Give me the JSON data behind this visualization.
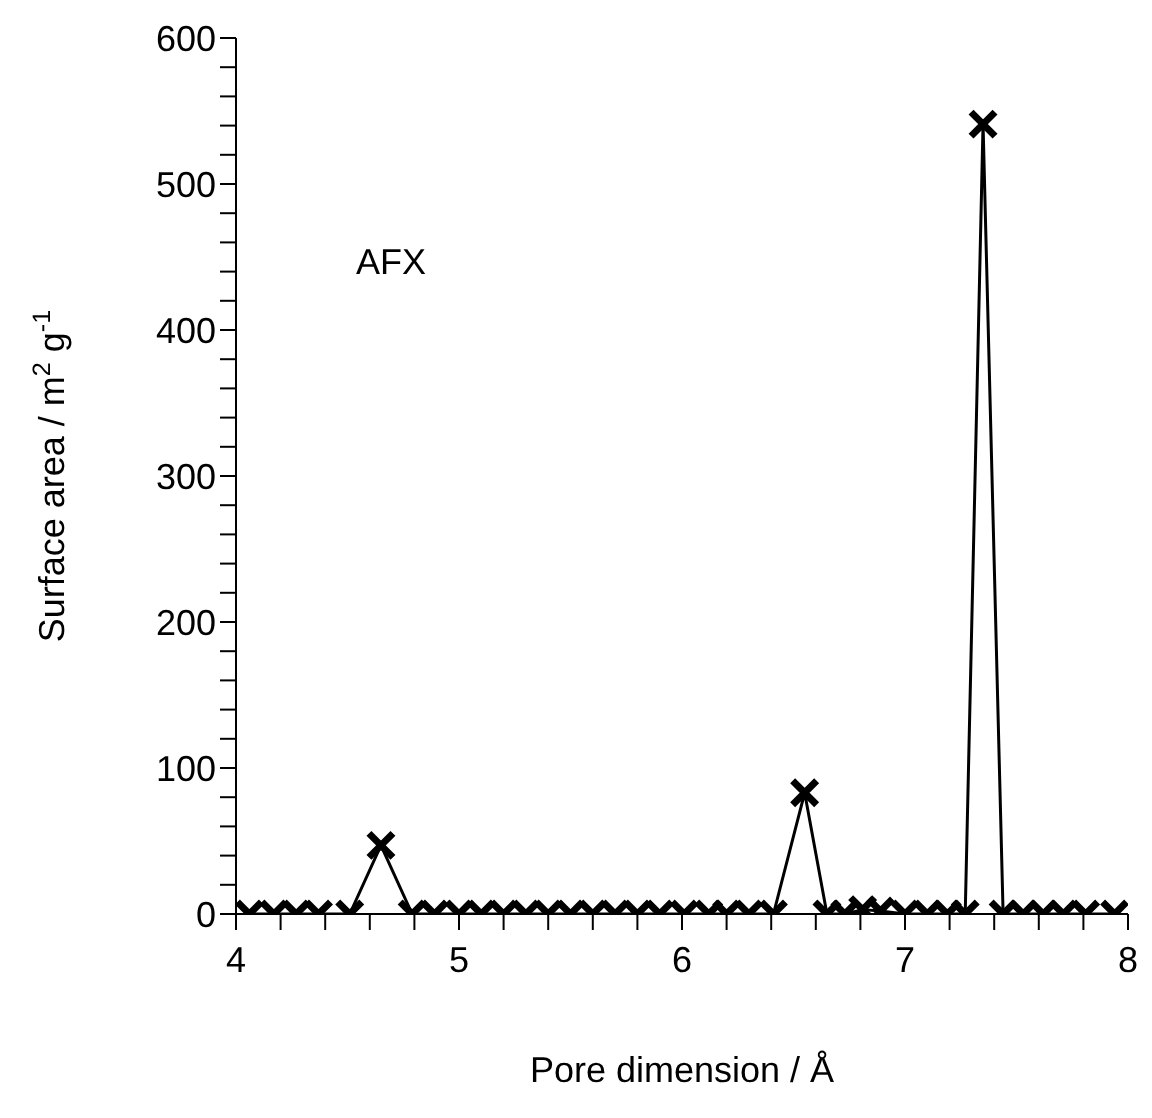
{
  "chart_data": {
    "type": "line",
    "xlabel": "Pore dimension / Å",
    "ylabel": "Surface area / m$^{2}$ g$^{-1}$",
    "annotations": [
      "AFX"
    ],
    "x": [
      4.06,
      4.17,
      4.27,
      4.37,
      4.51,
      4.65,
      4.79,
      4.89,
      5.0,
      5.1,
      5.2,
      5.3,
      5.4,
      5.5,
      5.6,
      5.7,
      5.8,
      5.9,
      6.01,
      6.12,
      6.2,
      6.3,
      6.41,
      6.55,
      6.65,
      6.73,
      6.81,
      6.89,
      7.0,
      7.1,
      7.19,
      7.27,
      7.35,
      7.44,
      7.53,
      7.62,
      7.71,
      7.81,
      7.94
    ],
    "series": [
      {
        "color": "#000000",
        "values": [
          0,
          0,
          0,
          0,
          0,
          47,
          0,
          0,
          0,
          0,
          0,
          0,
          0,
          0,
          0,
          0,
          0,
          0,
          0,
          0,
          0,
          0,
          0,
          83,
          0,
          0,
          3,
          2,
          0,
          0,
          0,
          0,
          541,
          0,
          0,
          0,
          0,
          0,
          0
        ]
      }
    ],
    "marker": "cross",
    "line_style": "solid",
    "grid": false,
    "legend": false,
    "xlim": [
      4,
      8
    ],
    "xticks": [
      4,
      {
        "value": 4.2,
        "label": null
      },
      {
        "value": 4.4,
        "label": null
      },
      {
        "value": 4.6,
        "label": null
      },
      {
        "value": 4.8,
        "label": null
      },
      5,
      {
        "value": 5.2,
        "label": null
      },
      {
        "value": 5.4,
        "label": null
      },
      {
        "value": 5.6,
        "label": null
      },
      {
        "value": 5.8,
        "label": null
      },
      6,
      {
        "value": 6.2,
        "label": null
      },
      {
        "value": 6.4,
        "label": null
      },
      {
        "value": 6.6,
        "label": null
      },
      {
        "value": 6.8,
        "label": null
      },
      7,
      {
        "value": 7.2,
        "label": null
      },
      {
        "value": 7.4,
        "label": null
      },
      {
        "value": 7.6,
        "label": null
      },
      {
        "value": 7.8,
        "label": null
      },
      8
    ],
    "ylim": [
      0,
      600
    ],
    "yticks": [
      0,
      {
        "value": 20,
        "label": null
      },
      {
        "value": 40,
        "label": null
      },
      {
        "value": 60,
        "label": null
      },
      {
        "value": 80,
        "label": null
      },
      100,
      {
        "value": 120,
        "label": null
      },
      {
        "value": 140,
        "label": null
      },
      {
        "value": 160,
        "label": null
      },
      {
        "value": 180,
        "label": null
      },
      200,
      {
        "value": 220,
        "label": null
      },
      {
        "value": 240,
        "label": null
      },
      {
        "value": 260,
        "label": null
      },
      {
        "value": 280,
        "label": null
      },
      300,
      {
        "value": 320,
        "label": null
      },
      {
        "value": 340,
        "label": null
      },
      {
        "value": 360,
        "label": null
      },
      {
        "value": 380,
        "label": null
      },
      400,
      {
        "value": 420,
        "label": null
      },
      {
        "value": 440,
        "label": null
      },
      {
        "value": 460,
        "label": null
      },
      {
        "value": 480,
        "label": null
      },
      500,
      {
        "value": 520,
        "label": null
      },
      {
        "value": 540,
        "label": null
      },
      {
        "value": 560,
        "label": null
      },
      {
        "value": 580,
        "label": null
      },
      600
    ]
  }
}
